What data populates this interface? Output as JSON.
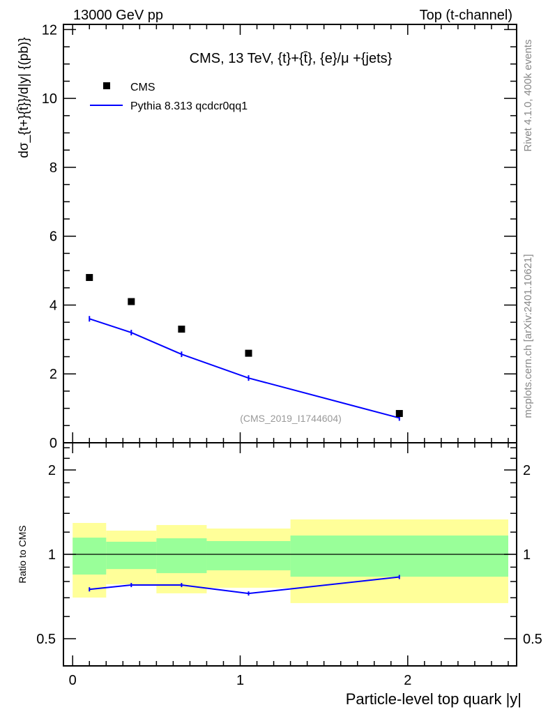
{
  "header": {
    "left": "13000 GeV pp",
    "right": "Top (t-channel)"
  },
  "side_labels": {
    "rivet": "Rivet 4.1.0,  400k events",
    "mcplots": "mcplots.cern.ch [arXiv:2401.10621]"
  },
  "chart_data": [
    {
      "type": "scatter",
      "title": "CMS, 13 TeV, {t}+{t̄}, {e}/μ +{jets}",
      "watermark": "(CMS_2019_I1744604)",
      "ylabel": "dσ_{t+}{t̄}}/d|y|  {(pb)}",
      "xlabel": "Particle-level top quark |y|",
      "xlim": [
        -0.055,
        2.65
      ],
      "ylim": [
        0,
        12.15
      ],
      "yticks": [
        "0",
        "2",
        "4",
        "6",
        "8",
        "10",
        "12"
      ],
      "legend": {
        "placement": "top-left",
        "entries": [
          "CMS",
          "Pythia 8.313 qcdcr0qq1"
        ]
      },
      "x": [
        0.1,
        0.35,
        0.65,
        1.05,
        1.95
      ],
      "bin_edges": [
        0,
        0.2,
        0.5,
        0.8,
        1.3,
        2.6
      ],
      "series": [
        {
          "name": "CMS",
          "style": "markers",
          "color": "#000000",
          "values": [
            4.8,
            4.1,
            3.3,
            2.6,
            0.85
          ]
        },
        {
          "name": "Pythia 8.313 qcdcr0qq1",
          "style": "line",
          "color": "#0000ff",
          "values": [
            3.6,
            3.2,
            2.57,
            1.88,
            0.72
          ]
        }
      ]
    },
    {
      "type": "line",
      "ylabel": "Ratio to CMS",
      "yscale": "log",
      "ylim": [
        0.4,
        2.5
      ],
      "yticks": [
        "0.5",
        "1",
        "2"
      ],
      "xticks": [
        "0",
        "1",
        "2"
      ],
      "series": [
        {
          "name": "Pythia 8.313 qcdcr0qq1",
          "color": "#0000ff",
          "values": [
            0.75,
            0.777,
            0.777,
            0.725,
            0.83
          ]
        }
      ],
      "bands": {
        "inner_color": "#99ff99",
        "outer_color": "#ffff99",
        "inner": [
          [
            0.847,
            1.147
          ],
          [
            0.886,
            1.109
          ],
          [
            0.857,
            1.141
          ],
          [
            0.877,
            1.115
          ],
          [
            0.832,
            1.167
          ]
        ],
        "outer": [
          [
            0.701,
            1.294
          ],
          [
            0.782,
            1.215
          ],
          [
            0.726,
            1.272
          ],
          [
            0.76,
            1.236
          ],
          [
            0.67,
            1.332
          ]
        ]
      }
    }
  ]
}
